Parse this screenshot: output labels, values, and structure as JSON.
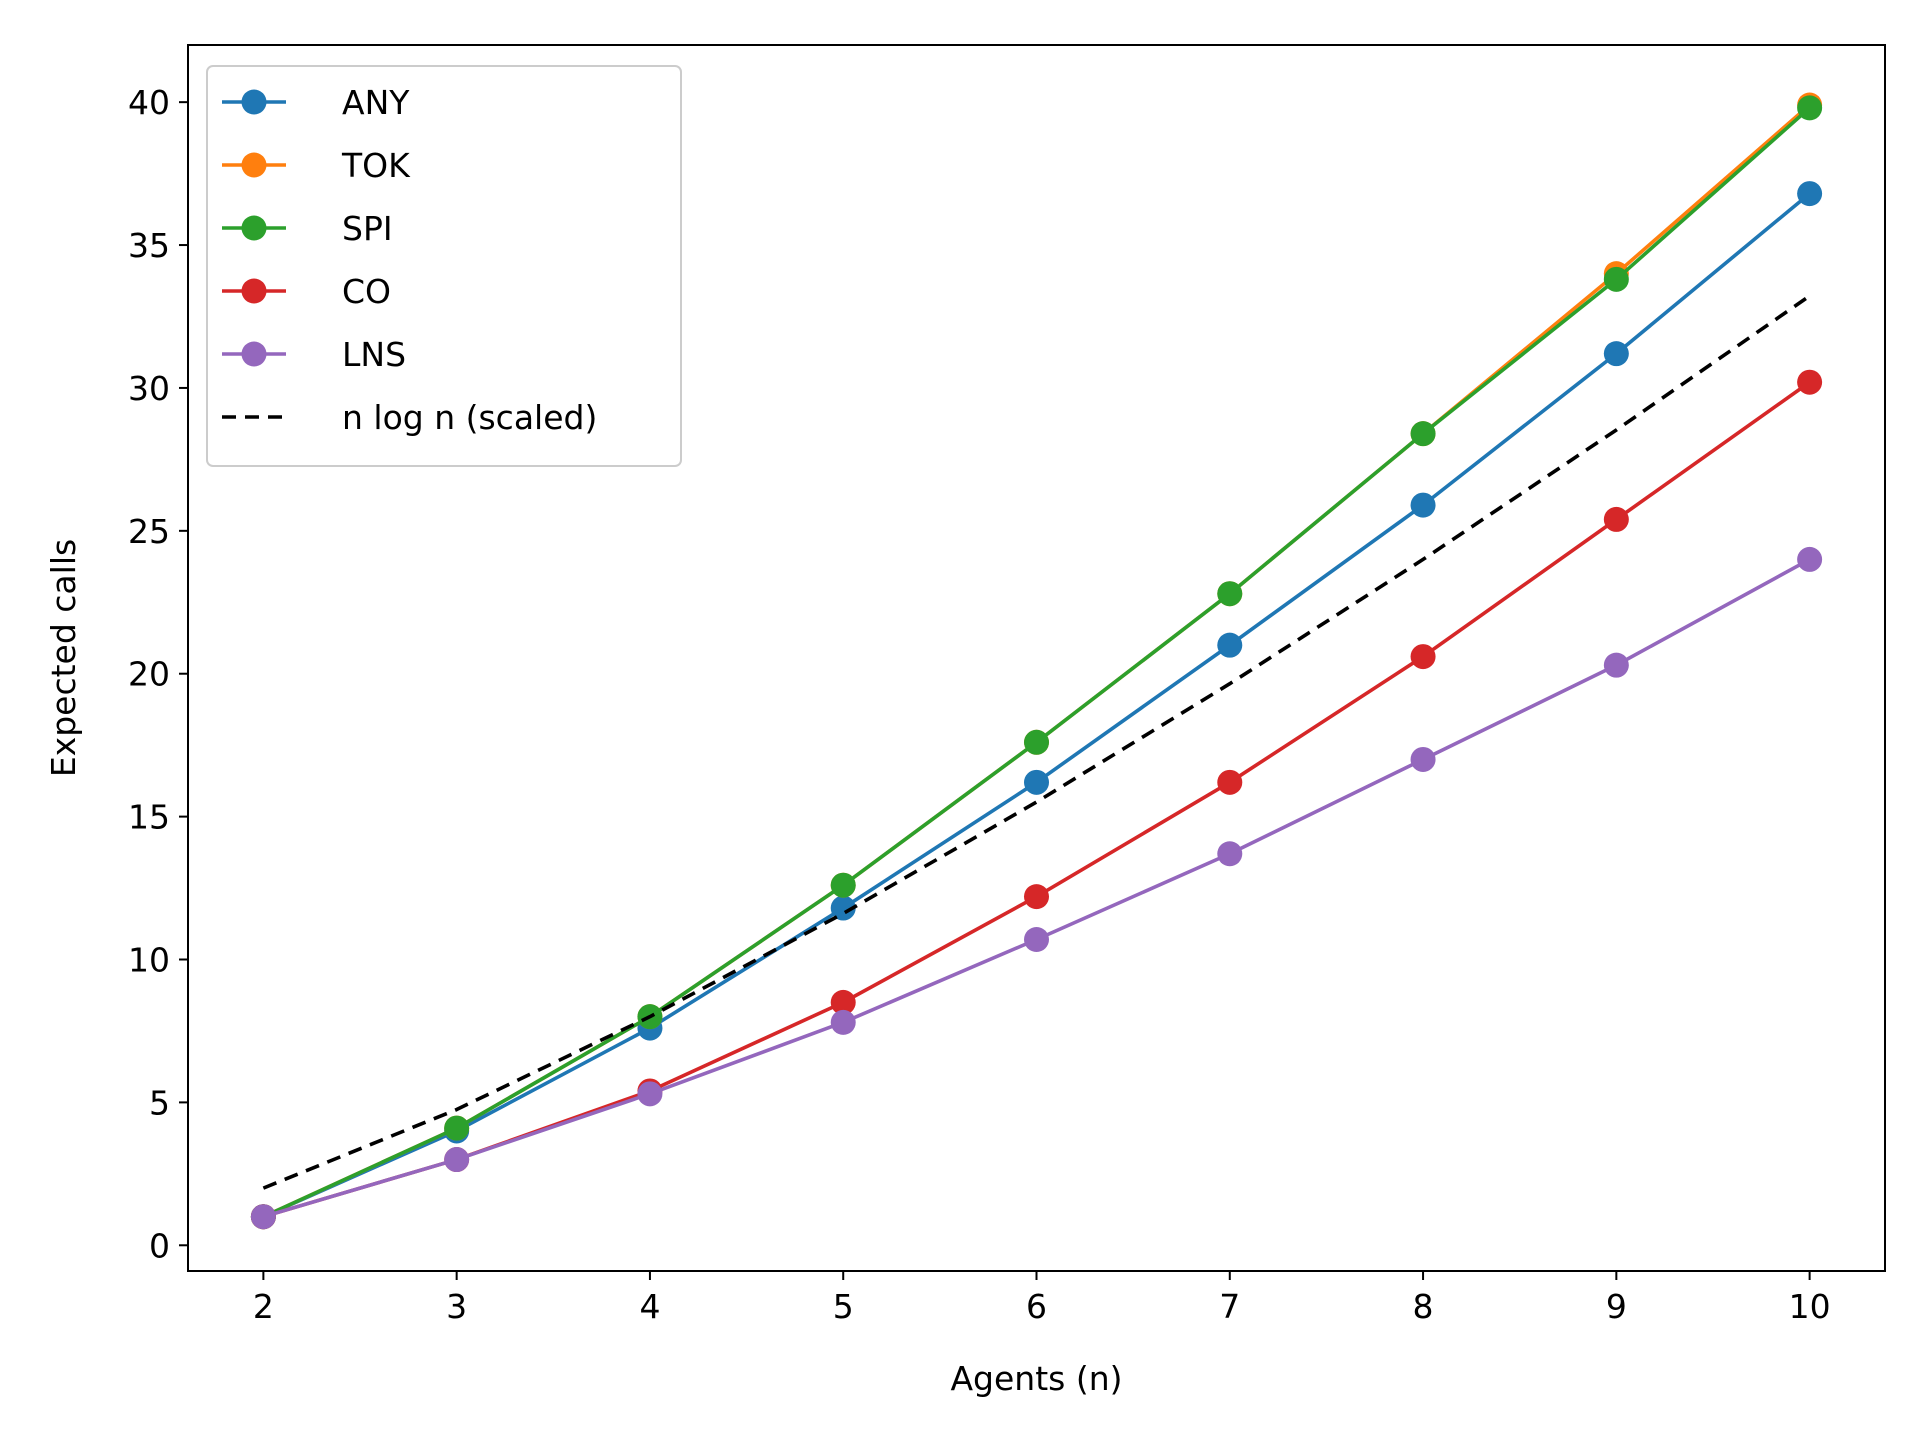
{
  "chart_data": {
    "type": "line",
    "xlabel": "Agents (n)",
    "ylabel": "Expected calls",
    "xlim": [
      1.61,
      10.39
    ],
    "ylim": [
      -0.9,
      42.0
    ],
    "xticks": [
      2,
      3,
      4,
      5,
      6,
      7,
      8,
      9,
      10
    ],
    "yticks": [
      0,
      5,
      10,
      15,
      20,
      25,
      30,
      35,
      40
    ],
    "legend_position": "upper-left",
    "grid": false,
    "x": [
      2,
      3,
      4,
      5,
      6,
      7,
      8,
      9,
      10
    ],
    "series": [
      {
        "name": "ANY",
        "color": "#1f77b4",
        "style": "solid",
        "marker": "circle",
        "values": [
          1.0,
          4.0,
          7.6,
          11.8,
          16.2,
          21.0,
          25.9,
          31.2,
          36.8
        ]
      },
      {
        "name": "TOK",
        "color": "#ff7f0e",
        "style": "solid",
        "marker": "circle",
        "values": [
          1.0,
          4.1,
          8.0,
          12.6,
          17.6,
          22.8,
          28.4,
          34.0,
          39.9
        ]
      },
      {
        "name": "SPI",
        "color": "#2ca02c",
        "style": "solid",
        "marker": "circle",
        "values": [
          1.0,
          4.1,
          8.0,
          12.6,
          17.6,
          22.8,
          28.4,
          33.8,
          39.8
        ]
      },
      {
        "name": "CO",
        "color": "#d62728",
        "style": "solid",
        "marker": "circle",
        "values": [
          1.0,
          3.0,
          5.4,
          8.5,
          12.2,
          16.2,
          20.6,
          25.4,
          30.2
        ]
      },
      {
        "name": "LNS",
        "color": "#9467bd",
        "style": "solid",
        "marker": "circle",
        "values": [
          1.0,
          3.0,
          5.3,
          7.8,
          10.7,
          13.7,
          17.0,
          20.3,
          24.0
        ]
      },
      {
        "name": "n log n (scaled)",
        "color": "#000000",
        "style": "dashed",
        "marker": "none",
        "values": [
          2.0,
          4.75,
          8.0,
          11.61,
          15.51,
          19.65,
          24.0,
          28.53,
          33.22
        ]
      }
    ]
  }
}
